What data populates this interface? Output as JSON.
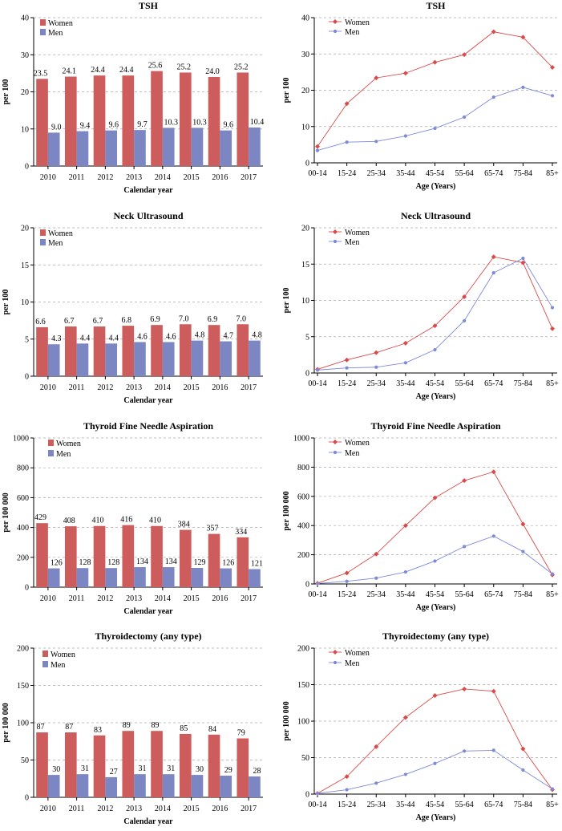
{
  "chart_data": [
    {
      "type": "bar",
      "title": "TSH",
      "xlabel": "Calendar year",
      "ylabel": "per 100",
      "ylim": [
        0,
        40
      ],
      "yticks": [
        0,
        10,
        20,
        30,
        40
      ],
      "legend": "top-left",
      "grid": "dashed horizontal",
      "categories": [
        "2010",
        "2011",
        "2012",
        "2013",
        "2014",
        "2015",
        "2016",
        "2017"
      ],
      "series": [
        {
          "name": "Women",
          "color": "#cd5c5c",
          "values": [
            23.5,
            24.1,
            24.4,
            24.4,
            25.6,
            25.2,
            24.0,
            25.2
          ],
          "labels": [
            "23.5",
            "24.1",
            "24.4",
            "24.4",
            "25.6",
            "25.2",
            "24.0",
            "25.2"
          ]
        },
        {
          "name": "Men",
          "color": "#7b86c3",
          "values": [
            9.0,
            9.4,
            9.6,
            9.7,
            10.3,
            10.3,
            9.6,
            10.4
          ],
          "labels": [
            "9.0",
            "9.4",
            "9.6",
            "9.7",
            "10.3",
            "10.3",
            "9.6",
            "10.4"
          ]
        }
      ]
    },
    {
      "type": "line",
      "title": "TSH",
      "xlabel": "Age (Years)",
      "ylabel": "per 100",
      "ylim": [
        0,
        40
      ],
      "yticks": [
        0,
        10,
        20,
        30,
        40
      ],
      "legend": "top-left",
      "grid": "dashed horizontal",
      "categories": [
        "00-14",
        "15-24",
        "25-34",
        "35-44",
        "45-54",
        "55-64",
        "65-74",
        "75-84",
        "85+"
      ],
      "series": [
        {
          "name": "Women",
          "color": "#d94b4b",
          "marker": "diamond",
          "values": [
            4.5,
            16.3,
            23.4,
            24.7,
            27.7,
            29.8,
            36.1,
            34.6,
            26.3
          ]
        },
        {
          "name": "Men",
          "color": "#7e8ad6",
          "marker": "circle",
          "values": [
            3.4,
            5.7,
            5.9,
            7.4,
            9.5,
            12.6,
            18.1,
            20.8,
            18.5
          ]
        }
      ]
    },
    {
      "type": "bar",
      "title": "Neck Ultrasound",
      "xlabel": "Calendar year",
      "ylabel": "per 100",
      "ylim": [
        0,
        20
      ],
      "yticks": [
        0,
        5,
        10,
        15,
        20
      ],
      "legend": "top-left",
      "grid": "dashed horizontal",
      "categories": [
        "2010",
        "2011",
        "2012",
        "2013",
        "2014",
        "2015",
        "2016",
        "2017"
      ],
      "series": [
        {
          "name": "Women",
          "color": "#cd5c5c",
          "values": [
            6.6,
            6.7,
            6.7,
            6.8,
            6.9,
            7.0,
            6.9,
            7.0
          ],
          "labels": [
            "6.6",
            "6.7",
            "6.7",
            "6.8",
            "6.9",
            "7.0",
            "6.9",
            "7.0"
          ]
        },
        {
          "name": "Men",
          "color": "#7b86c3",
          "values": [
            4.3,
            4.4,
            4.4,
            4.6,
            4.6,
            4.8,
            4.7,
            4.8
          ],
          "labels": [
            "4.3",
            "4.4",
            "4.4",
            "4.6",
            "4.6",
            "4.8",
            "4.7",
            "4.8"
          ]
        }
      ]
    },
    {
      "type": "line",
      "title": "Neck Ultrasound",
      "xlabel": "Age (Years)",
      "ylabel": "per 100",
      "ylim": [
        0,
        20
      ],
      "yticks": [
        0,
        5,
        10,
        15,
        20
      ],
      "legend": "top-left",
      "grid": "dashed horizontal",
      "categories": [
        "00-14",
        "15-24",
        "25-34",
        "35-44",
        "45-54",
        "55-64",
        "65-74",
        "75-84",
        "85+"
      ],
      "series": [
        {
          "name": "Women",
          "color": "#d94b4b",
          "marker": "diamond",
          "values": [
            0.5,
            1.8,
            2.8,
            4.1,
            6.5,
            10.5,
            16.0,
            15.2,
            6.1
          ]
        },
        {
          "name": "Men",
          "color": "#7e8ad6",
          "marker": "circle",
          "values": [
            0.4,
            0.7,
            0.8,
            1.4,
            3.2,
            7.2,
            13.8,
            15.8,
            9.0
          ]
        }
      ]
    },
    {
      "type": "bar",
      "title": "Thyroid Fine Needle Aspiration",
      "xlabel": "Calendar year",
      "ylabel": "per 100 000",
      "ylim": [
        0,
        1000
      ],
      "yticks": [
        0,
        200,
        400,
        600,
        800,
        1000
      ],
      "legend": "top-left",
      "grid": "dashed horizontal",
      "categories": [
        "2010",
        "2011",
        "2012",
        "2013",
        "2014",
        "2015",
        "2016",
        "2017"
      ],
      "series": [
        {
          "name": "Women",
          "color": "#cd5c5c",
          "values": [
            429,
            408,
            410,
            416,
            410,
            384,
            357,
            334
          ],
          "labels": [
            "429",
            "408",
            "410",
            "416",
            "410",
            "384",
            "357",
            "334"
          ]
        },
        {
          "name": "Men",
          "color": "#7b86c3",
          "values": [
            126,
            128,
            128,
            134,
            134,
            129,
            126,
            121
          ],
          "labels": [
            "126",
            "128",
            "128",
            "134",
            "134",
            "129",
            "126",
            "121"
          ]
        }
      ]
    },
    {
      "type": "line",
      "title": "Thyroid Fine Needle Aspiration",
      "xlabel": "Age (Years)",
      "ylabel": "per 100 000",
      "ylim": [
        0,
        1000
      ],
      "yticks": [
        0,
        200,
        400,
        600,
        800,
        1000
      ],
      "legend": "top-left",
      "grid": "dashed horizontal",
      "categories": [
        "00-14",
        "15-24",
        "25-34",
        "35-44",
        "45-54",
        "55-64",
        "65-74",
        "75-84",
        "85+"
      ],
      "series": [
        {
          "name": "Women",
          "color": "#d94b4b",
          "marker": "diamond",
          "values": [
            5,
            75,
            205,
            400,
            590,
            708,
            768,
            410,
            62
          ]
        },
        {
          "name": "Men",
          "color": "#7e8ad6",
          "marker": "circle",
          "values": [
            3,
            18,
            40,
            82,
            157,
            256,
            328,
            222,
            68
          ]
        }
      ]
    },
    {
      "type": "bar",
      "title": "Thyroidectomy (any type)",
      "xlabel": "Calendar year",
      "ylabel": "per 100 000",
      "ylim": [
        0,
        200
      ],
      "yticks": [
        0,
        50,
        100,
        150,
        200
      ],
      "legend": "top-left",
      "grid": "dashed horizontal",
      "categories": [
        "2010",
        "2011",
        "2012",
        "2013",
        "2014",
        "2015",
        "2016",
        "2017"
      ],
      "series": [
        {
          "name": "Women",
          "color": "#cd5c5c",
          "values": [
            87,
            87,
            83,
            89,
            89,
            85,
            84,
            79
          ],
          "labels": [
            "87",
            "87",
            "83",
            "89",
            "89",
            "85",
            "84",
            "79"
          ]
        },
        {
          "name": "Men",
          "color": "#7b86c3",
          "values": [
            30,
            31,
            27,
            31,
            31,
            30,
            29,
            28
          ],
          "labels": [
            "30",
            "31",
            "27",
            "31",
            "31",
            "30",
            "29",
            "28"
          ]
        }
      ]
    },
    {
      "type": "line",
      "title": "Thyroidectomy (any type)",
      "xlabel": "Age (Years)",
      "ylabel": "per 100 000",
      "ylim": [
        0,
        200
      ],
      "yticks": [
        0,
        50,
        100,
        150,
        200
      ],
      "legend": "top-left",
      "grid": "dashed horizontal",
      "categories": [
        "00-14",
        "15-24",
        "25-34",
        "35-44",
        "45-54",
        "55-64",
        "65-74",
        "75-84",
        "85+"
      ],
      "series": [
        {
          "name": "Women",
          "color": "#d94b4b",
          "marker": "diamond",
          "values": [
            1,
            24,
            65,
            105,
            135,
            144,
            141,
            62,
            6
          ]
        },
        {
          "name": "Men",
          "color": "#7e8ad6",
          "marker": "circle",
          "values": [
            1,
            6,
            15,
            27,
            42,
            59,
            60,
            33,
            7
          ]
        }
      ]
    }
  ]
}
